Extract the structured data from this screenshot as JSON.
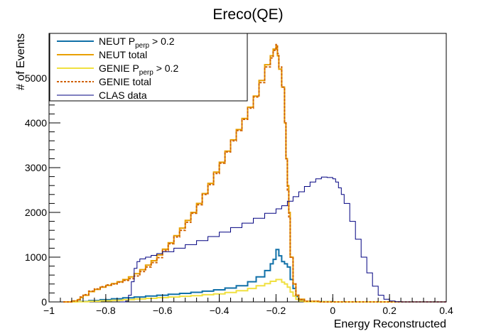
{
  "chart_data": {
    "type": "line",
    "title": "Ereco(QE)",
    "xlabel": "Energy Reconstructed",
    "ylabel": "# of Events",
    "xlim": [
      -1.0,
      0.4
    ],
    "ylim": [
      0,
      6000
    ],
    "x_ticks": [
      -1,
      -0.8,
      -0.6,
      -0.4,
      -0.2,
      0,
      0.2,
      0.4
    ],
    "x_tick_labels": [
      "−1",
      "−0.8",
      "−0.6",
      "−0.4",
      "−0.2",
      "0",
      "0.2",
      "0.4"
    ],
    "y_ticks": [
      0,
      1000,
      2000,
      3000,
      4000,
      5000
    ],
    "y_tick_labels": [
      "0",
      "1000",
      "2000",
      "3000",
      "4000",
      "5000"
    ],
    "grid": false,
    "legend_position": "top-left",
    "series": [
      {
        "name": "NEUT P_perp > 0.2",
        "legend_main": "NEUT P",
        "legend_sub": "perp",
        "legend_tail": " > 0.2",
        "color": "#1070a8",
        "style": "solid",
        "x": [
          -0.92,
          -0.9,
          -0.86,
          -0.82,
          -0.78,
          -0.74,
          -0.7,
          -0.66,
          -0.62,
          -0.58,
          -0.54,
          -0.5,
          -0.46,
          -0.42,
          -0.38,
          -0.34,
          -0.3,
          -0.27,
          -0.24,
          -0.22,
          -0.21,
          -0.2,
          -0.19,
          -0.18,
          -0.17,
          -0.16,
          -0.15,
          -0.14,
          -0.13,
          -0.12,
          -0.1,
          -0.05,
          0.0,
          0.1,
          0.2,
          0.3,
          0.4
        ],
        "y": [
          0,
          10,
          30,
          50,
          70,
          90,
          110,
          130,
          150,
          170,
          190,
          215,
          240,
          270,
          310,
          360,
          450,
          560,
          700,
          850,
          950,
          1170,
          1030,
          900,
          850,
          780,
          500,
          300,
          120,
          40,
          10,
          5,
          0,
          0,
          0,
          0,
          0
        ]
      },
      {
        "name": "NEUT total",
        "color": "#e8a000",
        "style": "solid",
        "x": [
          -0.95,
          -0.92,
          -0.9,
          -0.89,
          -0.88,
          -0.86,
          -0.84,
          -0.82,
          -0.8,
          -0.78,
          -0.76,
          -0.74,
          -0.72,
          -0.7,
          -0.68,
          -0.66,
          -0.64,
          -0.62,
          -0.6,
          -0.58,
          -0.56,
          -0.54,
          -0.52,
          -0.5,
          -0.48,
          -0.46,
          -0.44,
          -0.42,
          -0.4,
          -0.38,
          -0.36,
          -0.34,
          -0.32,
          -0.3,
          -0.28,
          -0.26,
          -0.24,
          -0.22,
          -0.21,
          -0.2,
          -0.195,
          -0.19,
          -0.18,
          -0.17,
          -0.165,
          -0.16,
          -0.155,
          -0.15,
          -0.14,
          -0.13,
          -0.12,
          -0.1,
          -0.05,
          0.0,
          0.1,
          0.2,
          0.3,
          0.4
        ],
        "y": [
          0,
          20,
          50,
          100,
          150,
          230,
          280,
          330,
          370,
          410,
          450,
          500,
          560,
          630,
          720,
          820,
          920,
          1050,
          1180,
          1320,
          1480,
          1650,
          1820,
          2000,
          2200,
          2420,
          2650,
          2900,
          3120,
          3370,
          3620,
          3850,
          4100,
          4350,
          4600,
          4950,
          5300,
          5500,
          5650,
          5720,
          5500,
          5200,
          4800,
          4000,
          3200,
          2600,
          2000,
          1000,
          400,
          150,
          60,
          15,
          0,
          0,
          0,
          0,
          0,
          0
        ]
      },
      {
        "name": "GENIE P_perp > 0.2",
        "legend_main": "GENIE P",
        "legend_sub": "perp",
        "legend_tail": " > 0.2",
        "color": "#f0e040",
        "style": "solid",
        "x": [
          -0.92,
          -0.9,
          -0.86,
          -0.82,
          -0.78,
          -0.74,
          -0.7,
          -0.66,
          -0.62,
          -0.58,
          -0.54,
          -0.5,
          -0.46,
          -0.42,
          -0.38,
          -0.34,
          -0.3,
          -0.27,
          -0.24,
          -0.22,
          -0.2,
          -0.18,
          -0.17,
          -0.16,
          -0.15,
          -0.14,
          -0.13,
          -0.12,
          -0.1,
          0.0,
          0.1,
          0.2,
          0.3,
          0.4
        ],
        "y": [
          0,
          5,
          15,
          25,
          35,
          50,
          65,
          80,
          95,
          110,
          125,
          140,
          160,
          180,
          210,
          250,
          300,
          360,
          410,
          460,
          500,
          440,
          400,
          330,
          220,
          130,
          60,
          20,
          5,
          0,
          0,
          0,
          0,
          0
        ]
      },
      {
        "name": "GENIE total",
        "color": "#d06000",
        "style": "dashed",
        "x": [
          -0.95,
          -0.92,
          -0.9,
          -0.89,
          -0.88,
          -0.86,
          -0.84,
          -0.82,
          -0.8,
          -0.78,
          -0.76,
          -0.74,
          -0.72,
          -0.7,
          -0.68,
          -0.66,
          -0.64,
          -0.62,
          -0.6,
          -0.58,
          -0.56,
          -0.54,
          -0.52,
          -0.5,
          -0.48,
          -0.46,
          -0.44,
          -0.42,
          -0.4,
          -0.38,
          -0.36,
          -0.34,
          -0.32,
          -0.3,
          -0.28,
          -0.26,
          -0.24,
          -0.22,
          -0.21,
          -0.2,
          -0.195,
          -0.19,
          -0.18,
          -0.17,
          -0.165,
          -0.16,
          -0.155,
          -0.15,
          -0.14,
          -0.13,
          -0.12,
          -0.1,
          -0.05,
          0.0,
          0.1,
          0.2,
          0.3,
          0.4
        ],
        "y": [
          0,
          20,
          55,
          110,
          160,
          240,
          290,
          340,
          380,
          400,
          440,
          480,
          520,
          580,
          680,
          780,
          880,
          990,
          1150,
          1300,
          1450,
          1600,
          1780,
          1980,
          2170,
          2400,
          2620,
          2870,
          3100,
          3350,
          3600,
          3830,
          4080,
          4330,
          4580,
          4900,
          5250,
          5450,
          5620,
          5750,
          5550,
          5250,
          4800,
          4000,
          3200,
          2500,
          1900,
          1000,
          400,
          150,
          50,
          15,
          0,
          0,
          0,
          0,
          0,
          0
        ]
      },
      {
        "name": "CLAS data",
        "color": "#000080",
        "style": "solid",
        "x": [
          -0.75,
          -0.73,
          -0.72,
          -0.71,
          -0.7,
          -0.69,
          -0.68,
          -0.66,
          -0.64,
          -0.62,
          -0.6,
          -0.56,
          -0.52,
          -0.48,
          -0.44,
          -0.4,
          -0.36,
          -0.32,
          -0.28,
          -0.24,
          -0.2,
          -0.18,
          -0.16,
          -0.14,
          -0.12,
          -0.1,
          -0.08,
          -0.06,
          -0.04,
          -0.02,
          0.0,
          0.01,
          0.02,
          0.03,
          0.04,
          0.06,
          0.08,
          0.1,
          0.12,
          0.14,
          0.16,
          0.18,
          0.2,
          0.22,
          0.24,
          0.3,
          0.4
        ],
        "y": [
          0,
          20,
          150,
          450,
          750,
          900,
          960,
          1000,
          1040,
          1080,
          1120,
          1200,
          1280,
          1370,
          1460,
          1560,
          1660,
          1760,
          1870,
          1980,
          2080,
          2150,
          2250,
          2350,
          2460,
          2580,
          2680,
          2750,
          2790,
          2780,
          2750,
          2680,
          2550,
          2400,
          2200,
          1800,
          1400,
          1000,
          650,
          350,
          150,
          60,
          20,
          5,
          0,
          0,
          0
        ]
      }
    ]
  }
}
